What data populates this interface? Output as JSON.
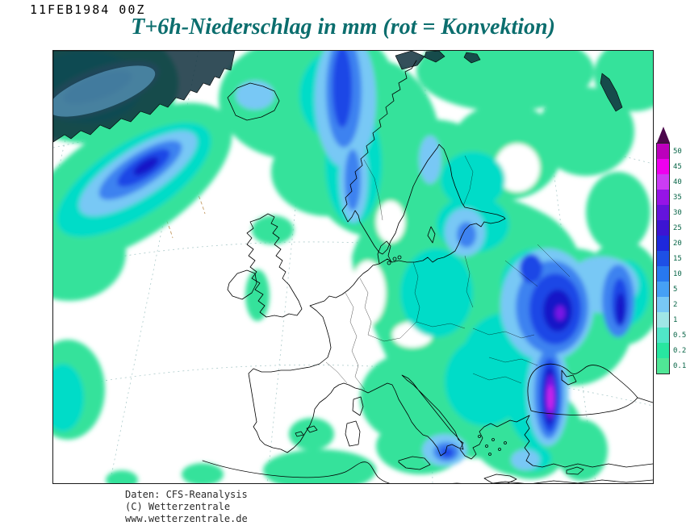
{
  "header": {
    "datestamp": "11FEB1984 00Z",
    "title": "T+6h-Niederschlag in mm (rot = Konvektion)"
  },
  "legend": {
    "arrow_color": "#4c074c",
    "entries": [
      {
        "value": "50",
        "color": "#bc00bc"
      },
      {
        "value": "45",
        "color": "#ee00ee"
      },
      {
        "value": "40",
        "color": "#cc3cf5"
      },
      {
        "value": "35",
        "color": "#9614e6"
      },
      {
        "value": "30",
        "color": "#6414dc"
      },
      {
        "value": "25",
        "color": "#3c14d2"
      },
      {
        "value": "20",
        "color": "#1e28dc"
      },
      {
        "value": "15",
        "color": "#1e50e6"
      },
      {
        "value": "10",
        "color": "#2878f0"
      },
      {
        "value": "5",
        "color": "#46a0f5"
      },
      {
        "value": "2",
        "color": "#78c8f5"
      },
      {
        "value": "1",
        "color": "#a0e6e6"
      },
      {
        "value": "0.5",
        "color": "#50e6c8"
      },
      {
        "value": "0.2",
        "color": "#28e6a0"
      },
      {
        "value": "0.1",
        "color": "#50e696"
      }
    ]
  },
  "footer": {
    "lines": [
      "Daten: CFS-Reanalysis",
      "(C) Wetterzentrale",
      "www.wetterzentrale.de"
    ]
  },
  "chart_data": {
    "type": "heatmap",
    "title": "T+6h-Niederschlag in mm (rot = Konvektion)",
    "valid_time": "11FEB1984 00Z",
    "units": "mm",
    "colorbar_values": [
      50,
      45,
      40,
      35,
      30,
      25,
      20,
      15,
      10,
      5,
      2,
      1,
      0.5,
      0.2,
      0.1
    ],
    "source": "CFS-Reanalysis"
  }
}
